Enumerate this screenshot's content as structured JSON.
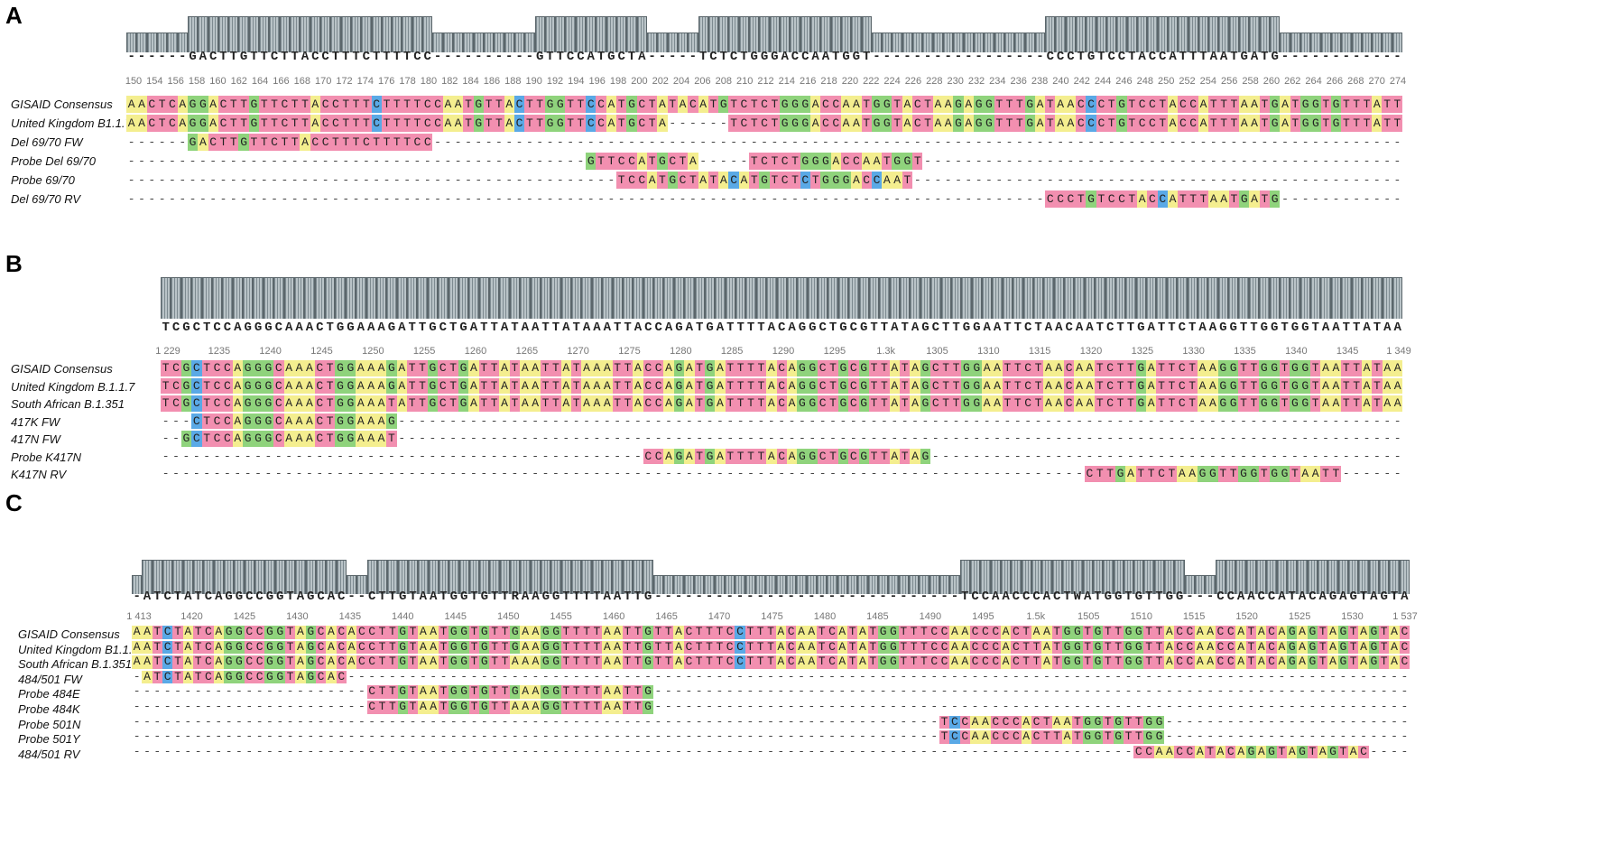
{
  "panels": [
    {
      "letter": "A",
      "consensus_seq": "------GACTTGTTCTTACCTTTCTTTTCC----------GTTCCATGCTA-----TCTCTGGGACCAATGGT-----------------CCCTGTCCTACCATTTAATGATG-----------",
      "ruler": [
        "150",
        "154",
        "156",
        "158",
        "160",
        "162",
        "164",
        "166",
        "168",
        "170",
        "172",
        "174",
        "176",
        "178",
        "180",
        "182",
        "184",
        "186",
        "188",
        "190",
        "192",
        "194",
        "196",
        "198",
        "200",
        "202",
        "204",
        "206",
        "208",
        "210",
        "212",
        "214",
        "216",
        "218",
        "220",
        "222",
        "224",
        "226",
        "228",
        "230",
        "232",
        "234",
        "236",
        "238",
        "240",
        "242",
        "244",
        "246",
        "248",
        "250",
        "252",
        "254",
        "256",
        "258",
        "260",
        "262",
        "264",
        "266",
        "268",
        "270",
        "274"
      ],
      "rows": [
        {
          "label": "GISAID Consensus",
          "seq": "AACTCAGGACTTGTTCTTACCTTTCTTTTCCAATGTTACTTGGTTCCATGCTATACATGTCTCTGGGACCAATGGTACTAAGAGGTTTGATAACCCTGTCCTACCATTTAATGATGGTGTTTATT"
        },
        {
          "label": "United Kingdom  B1.1.7",
          "seq": "AACTCAGGACTTGTTCTTACCTTTCTTTTCCAATGTTACTTGGTTCCATGCTA------TCTCTGGGACCAATGGTACTAAGAGGTTTGATAACCCTGTCCTACCATTTAATGATGGTGTTTATT"
        },
        {
          "label": "Del  69/70  FW",
          "seq": "------GACTTGTTCTTACCTTTCTTTTCC----------------------------------------------------------------------------------------------"
        },
        {
          "label": "Probe Del 69/70",
          "seq": "---------------------------------------------GTTCCATGCTA-----TCTCTGGGACCAATGGT----------------------------------------------"
        },
        {
          "label": "Probe 69/70",
          "seq": "------------------------------------------------TCCATGCTATACATGTCTCTGGGACCAAT-------------------------------------------------"
        },
        {
          "label": "Del  69/70  RV",
          "seq": "------------------------------------------------------------------------------------------CCCTGTCCTACCATTTAATGATG-----------"
        }
      ]
    },
    {
      "letter": "B",
      "consensus_seq": "TCGCTCCAGGGCAAACTGGAAAGATTGCTGATTATAATTATAAATTACCAGATGATTTTACAGGCTGCGTTATAGCTTGGAATTCTAACAATCTTGATTCTAAGGTTGGTGGTAATTATAA",
      "ruler": [
        "1 229",
        "1235",
        "1240",
        "1245",
        "1250",
        "1255",
        "1260",
        "1265",
        "1270",
        "1275",
        "1280",
        "1285",
        "1290",
        "1295",
        "1.3k",
        "1305",
        "1310",
        "1315",
        "1320",
        "1325",
        "1330",
        "1335",
        "1340",
        "1345",
        "1 349"
      ],
      "rows": [
        {
          "label": "GISAID Consensus",
          "seq": "TCGCTCCAGGGCAAACTGGAAAGATTGCTGATTATAATTATAAATTACCAGATGATTTTACAGGCTGCGTTATAGCTTGGAATTCTAACAATCTTGATTCTAAGGTTGGTGGTAATTATAA"
        },
        {
          "label": "United Kingdom  B.1.1.7",
          "seq": "TCGCTCCAGGGCAAACTGGAAAGATTGCTGATTATAATTATAAATTACCAGATGATTTTACAGGCTGCGTTATAGCTTGGAATTCTAACAATCTTGATTCTAAGGTTGGTGGTAATTATAA"
        },
        {
          "label": "South African B.1.351",
          "seq": "TCGCTCCAGGGCAAACTGGAAATATTGCTGATTATAATTATAAATTACCAGATGATTTTACAGGCTGCGTTATAGCTTGGAATTCTAACAATCTTGATTCTAAGGTTGGTGGTAATTATAA"
        },
        {
          "label": "417K FW",
          "seq": "---CTCCAGGGCAAACTGGAAAG-------------------------------------------------------------------------------------------------"
        },
        {
          "label": "417N FW",
          "seq": "--GCTCCAGGGCAAACTGGAAAT-------------------------------------------------------------------------------------------------"
        },
        {
          "label": "Probe K417N",
          "seq": "-----------------------------------------------CCAGATGATTTTACAGGCTGCGTTATAG-----------------------------------------"
        },
        {
          "label": "K417N RV",
          "seq": "------------------------------------------------------------------------------------------CTTGATTCTAAGGTTGGTGGTAATT---"
        }
      ]
    },
    {
      "letter": "C",
      "consensus_seq": "-ATCTATCAGGCCGGTAGCAC--CTTGTAATGGTGTTRAAGGTTTTAATTG------------------------------TCCAACCCACTWATGGTGTTGG---CCAACCATACAGAGTAGTAGTAC",
      "ruler": [
        "1 413",
        "1420",
        "1425",
        "1430",
        "1435",
        "1440",
        "1445",
        "1450",
        "1455",
        "1460",
        "1465",
        "1470",
        "1475",
        "1480",
        "1485",
        "1490",
        "1495",
        "1.5k",
        "1505",
        "1510",
        "1515",
        "1520",
        "1525",
        "1530",
        "1 537"
      ],
      "rows": [
        {
          "label": "GISAID Consensus",
          "seq": "AATCTATCAGGCCGGTAGCACACCTTGTAATGGTGTTGAAGGTTTTAATTGTTACTTTCCTTTACAATCATATGGTTTCCAACCCACTAATGGTGTTGGTTACCAACCATACAGAGTAGTAGTAC"
        },
        {
          "label": "United Kingdom  B1.1.7",
          "seq": "AATCTATCAGGCCGGTAGCACACCTTGTAATGGTGTTGAAGGTTTTAATTGTTACTTTCCTTTACAATCATATGGTTTCCAACCCACTTATGGTGTTGGTTACCAACCATACAGAGTAGTAGTAC"
        },
        {
          "label": "South African B.1.351",
          "seq": "AATCTATCAGGCCGGTAGCACACCTTGTAATGGTGTTAAAGGTTTTAATTGTTACTTTCCTTTACAATCATATGGTTTCCAACCCACTTATGGTGTTGGTTACCAACCATACAGAGTAGTAGTAC"
        },
        {
          "label": "484/501 FW",
          "seq": "-ATCTATCAGGCCGGTAGCAC----------------------------------------------------------------------------------------------------"
        },
        {
          "label": "Probe 484E",
          "seq": "-----------------------CTTGTAATGGTGTTGAAGGTTTTAATTG----------------------------------------------------------------------"
        },
        {
          "label": "Probe 484K",
          "seq": "-----------------------CTTGTAATGGTGTTAAAGGTTTTAATTG----------------------------------------------------------------------"
        },
        {
          "label": "Probe 501N",
          "seq": "-------------------------------------------------------------------------------TCCAACCCACTAATGGTGTTGG----------------------"
        },
        {
          "label": "Probe 501Y",
          "seq": "-------------------------------------------------------------------------------TCCAACCCACTTATGGTGTTGG----------------------"
        },
        {
          "label": "484/501 RV",
          "seq": "--------------------------------------------------------------------------------------------------CCAACCATACAGAGTAGTAGTAC"
        }
      ]
    }
  ],
  "colors": {
    "A": "#f4ee8f",
    "C": "#f28fb0",
    "G": "#8fd37c",
    "T": "#f28fb0",
    "blue": "#5aa9e6"
  }
}
